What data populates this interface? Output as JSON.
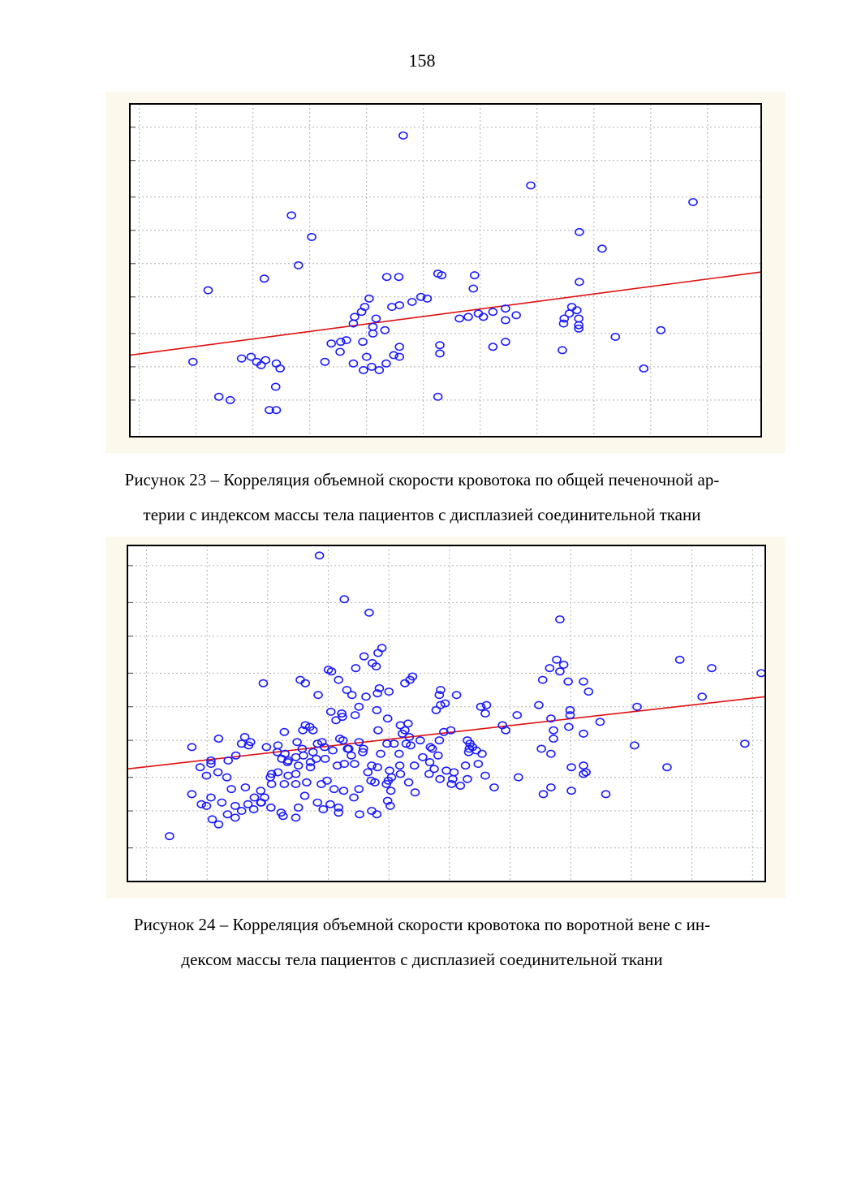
{
  "page": {
    "number": "158"
  },
  "figures": [
    {
      "caption_lines": [
        "Рисунок 23 – Корреляция объемной скорости кровотока по общей печеночной ар-",
        "терии с индексом массы тела пациентов с дисплазией соединительной ткани"
      ]
    },
    {
      "caption_lines": [
        "Рисунок 24 – Корреляция объемной скорости кровотока по воротной вене с ин-",
        "дексом массы тела пациентов с дисплазией соединительной ткани"
      ]
    }
  ],
  "colors": {
    "points": "#1a1aff",
    "regression": "#e01010",
    "grid": "#b0b0b0",
    "frame": "#000000",
    "figure_bg": "#fdf8ec"
  },
  "chart_data": [
    {
      "type": "scatter",
      "title": "",
      "xlabel": "",
      "ylabel": "",
      "xlim": [
        0,
        100
      ],
      "ylim": [
        0,
        100
      ],
      "grid": true,
      "legend": "none",
      "x_grid": [
        1.5,
        10.5,
        19.5,
        28.5,
        37.5,
        46.5,
        55.5,
        64.5,
        73.5,
        82.5,
        91.5,
        100
      ],
      "y_grid": [
        11,
        21,
        31,
        42,
        52,
        62,
        72,
        83,
        93
      ],
      "regression": {
        "x": [
          0,
          100
        ],
        "y": [
          24.5,
          49.5
        ]
      },
      "points": [
        [
          43.3,
          90.5
        ],
        [
          63.5,
          75.5
        ],
        [
          89.2,
          70.5
        ],
        [
          25.6,
          66.5
        ],
        [
          28.8,
          60
        ],
        [
          71.2,
          61.5
        ],
        [
          74.8,
          56.5
        ],
        [
          26.7,
          51.5
        ],
        [
          21.3,
          47.5
        ],
        [
          12.4,
          44
        ],
        [
          40.7,
          48
        ],
        [
          42.6,
          48
        ],
        [
          48.8,
          49
        ],
        [
          49.4,
          48.5
        ],
        [
          54.6,
          48.5
        ],
        [
          54.4,
          44.5
        ],
        [
          71.2,
          46.5
        ],
        [
          37.9,
          41.5
        ],
        [
          37.2,
          39
        ],
        [
          36.7,
          37.5
        ],
        [
          35.6,
          36
        ],
        [
          35.4,
          34
        ],
        [
          38.5,
          33
        ],
        [
          39,
          35.5
        ],
        [
          41.5,
          39
        ],
        [
          42.7,
          39.5
        ],
        [
          44.7,
          40.5
        ],
        [
          46.1,
          42
        ],
        [
          47.1,
          41.5
        ],
        [
          56,
          36
        ],
        [
          52.2,
          35.5
        ],
        [
          53.6,
          36
        ],
        [
          55.2,
          37
        ],
        [
          57.5,
          37.5
        ],
        [
          59.5,
          38.5
        ],
        [
          59.5,
          35
        ],
        [
          61.2,
          36.5
        ],
        [
          70,
          39
        ],
        [
          70.8,
          38
        ],
        [
          69.6,
          37
        ],
        [
          68.8,
          35.5
        ],
        [
          68.7,
          34
        ],
        [
          71.1,
          35.5
        ],
        [
          71.1,
          33.5
        ],
        [
          71.1,
          32.5
        ],
        [
          76.9,
          30
        ],
        [
          84.1,
          32
        ],
        [
          34.3,
          29
        ],
        [
          31.9,
          28
        ],
        [
          33.4,
          28.5
        ],
        [
          36.9,
          28.5
        ],
        [
          38.5,
          31
        ],
        [
          40.4,
          32
        ],
        [
          57.5,
          27
        ],
        [
          59.5,
          28.5
        ],
        [
          41.8,
          24.5
        ],
        [
          37.5,
          24
        ],
        [
          38.3,
          21
        ],
        [
          40.6,
          22
        ],
        [
          39.5,
          20
        ],
        [
          37,
          20
        ],
        [
          35.4,
          22
        ],
        [
          30.9,
          22.5
        ],
        [
          33.3,
          25.5
        ],
        [
          10,
          22.5
        ],
        [
          17.7,
          23.5
        ],
        [
          19.2,
          24
        ],
        [
          20.1,
          22.5
        ],
        [
          20.8,
          21.5
        ],
        [
          21.5,
          23
        ],
        [
          23.2,
          22
        ],
        [
          23.8,
          20.5
        ],
        [
          23.1,
          15
        ],
        [
          14.1,
          12
        ],
        [
          15.9,
          11
        ],
        [
          22.1,
          8
        ],
        [
          23.2,
          8
        ],
        [
          42.7,
          24
        ],
        [
          42.7,
          27
        ],
        [
          49.1,
          27.5
        ],
        [
          49.1,
          25
        ],
        [
          68.5,
          26
        ],
        [
          81.4,
          20.5
        ],
        [
          48.8,
          12
        ]
      ]
    },
    {
      "type": "scatter",
      "title": "",
      "xlabel": "",
      "ylabel": "",
      "xlim": [
        0,
        100
      ],
      "ylim": [
        0,
        100
      ],
      "grid": true,
      "legend": "none",
      "x_grid": [
        3,
        12.5,
        22,
        31.5,
        41,
        50.5,
        60,
        69.5,
        79,
        88.5,
        98
      ],
      "y_grid": [
        10,
        21,
        31,
        42,
        52,
        62,
        73,
        83,
        94
      ],
      "regression": {
        "x": [
          0,
          100
        ],
        "y": [
          33.5,
          55
        ]
      },
      "points": [
        [
          30.1,
          97
        ],
        [
          34,
          84
        ],
        [
          37.9,
          80
        ],
        [
          67.8,
          78
        ],
        [
          37.1,
          67
        ],
        [
          39.3,
          68
        ],
        [
          39.9,
          69.5
        ],
        [
          35.8,
          63.5
        ],
        [
          39,
          64
        ],
        [
          38.4,
          65
        ],
        [
          32,
          62.5
        ],
        [
          27.9,
          59
        ],
        [
          27.1,
          60
        ],
        [
          21.3,
          59
        ],
        [
          31.5,
          63
        ],
        [
          33.1,
          60
        ],
        [
          43.5,
          59
        ],
        [
          44.3,
          60
        ],
        [
          44.7,
          61
        ],
        [
          34.4,
          57
        ],
        [
          39.5,
          57.5
        ],
        [
          29.9,
          55.5
        ],
        [
          35.2,
          55.5
        ],
        [
          37.4,
          55
        ],
        [
          39.2,
          56
        ],
        [
          41,
          56.5
        ],
        [
          49.1,
          57
        ],
        [
          48.9,
          55.5
        ],
        [
          51.6,
          55.5
        ],
        [
          49.1,
          52.5
        ],
        [
          48.4,
          51
        ],
        [
          49.8,
          53
        ],
        [
          31.9,
          50.5
        ],
        [
          33.7,
          49
        ],
        [
          32.7,
          48
        ],
        [
          35.7,
          49.5
        ],
        [
          33.6,
          50
        ],
        [
          36.3,
          52
        ],
        [
          39.1,
          51
        ],
        [
          40.8,
          48.5
        ],
        [
          42.8,
          46.5
        ],
        [
          44,
          47
        ],
        [
          24.6,
          44.5
        ],
        [
          27.5,
          45
        ],
        [
          27.9,
          46.5
        ],
        [
          28.6,
          46
        ],
        [
          29.1,
          45
        ],
        [
          33.8,
          42
        ],
        [
          33.3,
          42.5
        ],
        [
          36.3,
          41.5
        ],
        [
          39.3,
          45
        ],
        [
          43.1,
          44
        ],
        [
          43.5,
          45
        ],
        [
          44.2,
          43
        ],
        [
          44.4,
          40.5
        ],
        [
          45.9,
          42
        ],
        [
          26.6,
          41.5
        ],
        [
          27.4,
          39.5
        ],
        [
          29.8,
          41
        ],
        [
          30.5,
          41.5
        ],
        [
          30.9,
          40
        ],
        [
          32.2,
          39
        ],
        [
          34.7,
          39.5
        ],
        [
          37,
          39.5
        ],
        [
          40.7,
          41
        ],
        [
          41.8,
          41
        ],
        [
          43.7,
          41
        ],
        [
          47.5,
          40
        ],
        [
          47.8,
          39.5
        ],
        [
          48.9,
          42
        ],
        [
          49.6,
          44.5
        ],
        [
          50.7,
          45
        ],
        [
          53.7,
          41
        ],
        [
          53.6,
          39.5
        ],
        [
          53.5,
          38.5
        ],
        [
          55.4,
          52
        ],
        [
          56.1,
          50
        ],
        [
          56.3,
          52.5
        ],
        [
          58.8,
          46.5
        ],
        [
          59.3,
          45
        ],
        [
          61.1,
          49.5
        ],
        [
          64.5,
          52.5
        ],
        [
          65.1,
          60
        ],
        [
          66.2,
          63.5
        ],
        [
          67.3,
          66
        ],
        [
          67.8,
          62.5
        ],
        [
          68.4,
          64.5
        ],
        [
          69.1,
          59.5
        ],
        [
          69.4,
          51
        ],
        [
          69.4,
          49.5
        ],
        [
          69.2,
          46
        ],
        [
          71.5,
          59.5
        ],
        [
          72.3,
          56.5
        ],
        [
          66.4,
          48.5
        ],
        [
          66.8,
          45
        ],
        [
          66.8,
          42.5
        ],
        [
          71.5,
          44
        ],
        [
          74.1,
          47.5
        ],
        [
          64.9,
          39.5
        ],
        [
          66.4,
          38
        ],
        [
          69.6,
          34
        ],
        [
          71.5,
          34.5
        ],
        [
          71.9,
          32.5
        ],
        [
          75,
          26
        ],
        [
          79.9,
          52
        ],
        [
          79.5,
          40.5
        ],
        [
          84.6,
          34
        ],
        [
          90.1,
          55
        ],
        [
          91.6,
          63.5
        ],
        [
          86.6,
          66
        ],
        [
          101,
          62
        ],
        [
          96.8,
          41
        ],
        [
          71.5,
          32
        ],
        [
          69.6,
          27
        ],
        [
          66.4,
          28
        ],
        [
          65.2,
          26
        ],
        [
          61.3,
          31
        ],
        [
          57.5,
          28
        ],
        [
          56.1,
          31.5
        ],
        [
          55,
          35
        ],
        [
          53.3,
          30.5
        ],
        [
          50.8,
          29
        ],
        [
          49,
          30.5
        ],
        [
          47.3,
          32
        ],
        [
          45.1,
          26.5
        ],
        [
          44.1,
          29.5
        ],
        [
          42.8,
          32
        ],
        [
          41.4,
          31
        ],
        [
          41.1,
          33
        ],
        [
          38.8,
          29.5
        ],
        [
          37.7,
          32.5
        ],
        [
          35.6,
          35
        ],
        [
          34,
          35
        ],
        [
          32.9,
          34.5
        ],
        [
          31,
          36.5
        ],
        [
          28.7,
          35.5
        ],
        [
          29.1,
          38.5
        ],
        [
          28.7,
          34
        ],
        [
          26.8,
          34.5
        ],
        [
          26.4,
          37
        ],
        [
          24.7,
          38
        ],
        [
          23.5,
          38.5
        ],
        [
          25.1,
          35.5
        ],
        [
          23.6,
          40.5
        ],
        [
          21.8,
          40
        ],
        [
          19,
          40.5
        ],
        [
          19.3,
          41.5
        ],
        [
          18.4,
          43
        ],
        [
          14.3,
          42.5
        ],
        [
          17,
          37.5
        ],
        [
          15.8,
          36
        ],
        [
          14.2,
          32.5
        ],
        [
          13.1,
          36
        ],
        [
          13.1,
          35
        ],
        [
          11.4,
          34
        ],
        [
          12.4,
          31.5
        ],
        [
          15.6,
          31
        ],
        [
          16.3,
          27.5
        ],
        [
          18.5,
          28
        ],
        [
          20.9,
          27
        ],
        [
          19.9,
          25
        ],
        [
          21.5,
          25
        ],
        [
          22.6,
          29
        ],
        [
          22.4,
          31
        ],
        [
          23.6,
          32.5
        ],
        [
          25.2,
          31.5
        ],
        [
          26.4,
          32
        ],
        [
          24.6,
          29
        ],
        [
          26.4,
          29
        ],
        [
          28.1,
          29.5
        ],
        [
          30.4,
          29
        ],
        [
          31.3,
          30
        ],
        [
          32.4,
          27.5
        ],
        [
          33.9,
          27
        ],
        [
          35.5,
          25
        ],
        [
          36.3,
          27.5
        ],
        [
          38.2,
          30
        ],
        [
          40.6,
          29
        ],
        [
          40.9,
          30
        ],
        [
          41.3,
          27
        ],
        [
          40.8,
          24
        ],
        [
          41.2,
          22.5
        ],
        [
          38.3,
          21
        ],
        [
          39.1,
          20
        ],
        [
          36.4,
          20
        ],
        [
          33.1,
          22
        ],
        [
          33.1,
          20.5
        ],
        [
          31.8,
          23
        ],
        [
          29.8,
          23.5
        ],
        [
          30.7,
          21.5
        ],
        [
          27.8,
          25.5
        ],
        [
          26.8,
          22
        ],
        [
          26.4,
          19
        ],
        [
          24.4,
          19.5
        ],
        [
          24.1,
          20.5
        ],
        [
          22.5,
          22
        ],
        [
          20.9,
          23.5
        ],
        [
          18.9,
          23
        ],
        [
          19.8,
          21.5
        ],
        [
          17.9,
          21
        ],
        [
          16.9,
          19
        ],
        [
          16.9,
          22.5
        ],
        [
          15.7,
          20
        ],
        [
          13.1,
          25
        ],
        [
          11.6,
          23
        ],
        [
          10.1,
          26
        ],
        [
          12.4,
          22.5
        ],
        [
          13.3,
          18.5
        ],
        [
          14.3,
          17
        ],
        [
          14.8,
          23.5
        ],
        [
          6.6,
          13.5
        ],
        [
          10.1,
          40
        ],
        [
          17.9,
          41
        ],
        [
          24.2,
          36.5
        ],
        [
          25.2,
          36
        ],
        [
          27.6,
          37.5
        ],
        [
          29.6,
          36.5
        ],
        [
          21,
          23.5
        ],
        [
          22.6,
          32
        ],
        [
          35.1,
          37.5
        ],
        [
          36.9,
          38.5
        ],
        [
          34.5,
          39.5
        ],
        [
          39.7,
          38
        ],
        [
          39.2,
          34
        ],
        [
          38.3,
          34.5
        ],
        [
          42.6,
          38
        ],
        [
          42.7,
          34.5
        ],
        [
          45,
          34.5
        ],
        [
          46.3,
          37
        ],
        [
          47.4,
          35.5
        ],
        [
          48.7,
          37.5
        ],
        [
          48.1,
          33.5
        ],
        [
          50,
          33
        ],
        [
          51,
          30.5
        ],
        [
          51.2,
          32.5
        ],
        [
          52.2,
          28.5
        ],
        [
          53,
          34.5
        ],
        [
          54.7,
          39
        ],
        [
          55.6,
          38
        ],
        [
          53.3,
          42
        ],
        [
          54.1,
          40
        ]
      ]
    }
  ]
}
